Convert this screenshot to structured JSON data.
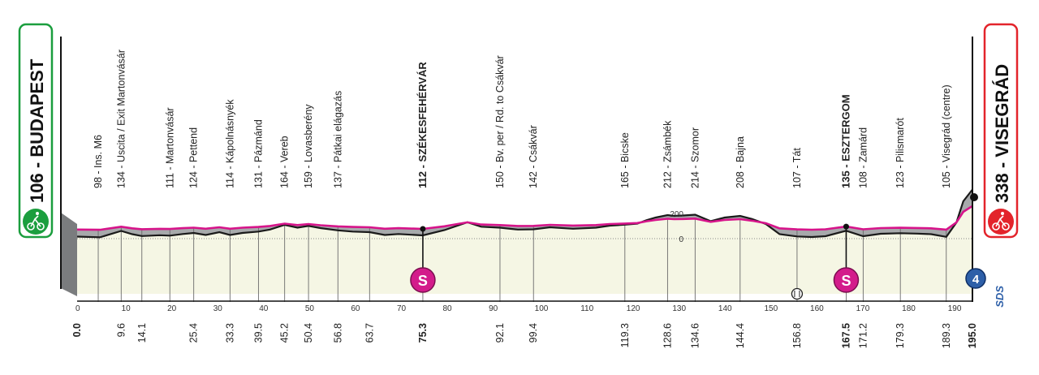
{
  "chart_data": {
    "type": "area",
    "x_unit": "km",
    "xlim": [
      0,
      195
    ],
    "x_ticks": [
      "0",
      "10",
      "20",
      "30",
      "40",
      "50",
      "60",
      "70",
      "80",
      "90",
      "100",
      "110",
      "120",
      "130",
      "140",
      "150",
      "160",
      "170",
      "180",
      "190"
    ],
    "alt_ticks": [
      "200",
      "0"
    ],
    "start": {
      "altitude": "106",
      "sep": " - ",
      "name": "BUDAPEST",
      "color": "#1b9e3e"
    },
    "finish": {
      "altitude": "338",
      "sep": " - ",
      "name": "VISEGRÁD",
      "color": "#e3242b"
    },
    "sprints": [
      {
        "label": "S",
        "km": 75.3
      },
      {
        "label": "S",
        "km": 167.5
      }
    ],
    "finish_badge": "4",
    "brand": "SDS",
    "waypoints": [
      {
        "km": 0.0,
        "km_label": "0.0",
        "name": "",
        "bold": true
      },
      {
        "km": 4.6,
        "km_label": "",
        "name": "98 - Ins. M6",
        "bold": false
      },
      {
        "km": 9.6,
        "km_label": "9.6",
        "name": "134 - Uscita / Exit Martonvásár",
        "bold": false
      },
      {
        "km": 14.1,
        "km_label": "14.1",
        "name": "",
        "bold": false
      },
      {
        "km": 20.2,
        "km_label": "",
        "name": "111 - Martonvásár",
        "bold": false
      },
      {
        "km": 25.4,
        "km_label": "25.4",
        "name": "124 - Pettend",
        "bold": false
      },
      {
        "km": 33.3,
        "km_label": "33.3",
        "name": "114 - Kápolnásnyék",
        "bold": false
      },
      {
        "km": 39.5,
        "km_label": "39.5",
        "name": "131 - Pázmánd",
        "bold": false
      },
      {
        "km": 45.2,
        "km_label": "45.2",
        "name": "164 - Vereb",
        "bold": false
      },
      {
        "km": 50.4,
        "km_label": "50.4",
        "name": "159 - Lovasberény",
        "bold": false
      },
      {
        "km": 56.8,
        "km_label": "56.8",
        "name": "137 - Pátkai elágazás",
        "bold": false
      },
      {
        "km": 63.7,
        "km_label": "63.7",
        "name": "",
        "bold": false
      },
      {
        "km": 75.3,
        "km_label": "75.3",
        "name": "112 - SZÉKESFEHÉRVÁR",
        "bold": true
      },
      {
        "km": 92.1,
        "km_label": "92.1",
        "name": "150 - Bv. per / Rd. to Csákvár",
        "bold": false
      },
      {
        "km": 99.4,
        "km_label": "99.4",
        "name": "142 - Csákvár",
        "bold": false
      },
      {
        "km": 119.3,
        "km_label": "119.3",
        "name": "165 - Bicske",
        "bold": false
      },
      {
        "km": 128.6,
        "km_label": "128.6",
        "name": "212 - Zsámbék",
        "bold": false
      },
      {
        "km": 134.6,
        "km_label": "134.6",
        "name": "214 - Szomor",
        "bold": false
      },
      {
        "km": 144.4,
        "km_label": "144.4",
        "name": "208 - Bajna",
        "bold": false
      },
      {
        "km": 156.8,
        "km_label": "156.8",
        "name": "107 - Tát",
        "bold": false
      },
      {
        "km": 167.5,
        "km_label": "167.5",
        "name": "135 - ESZTERGOM",
        "bold": true
      },
      {
        "km": 171.2,
        "km_label": "171.2",
        "name": "108 - Zamárd",
        "bold": false
      },
      {
        "km": 179.3,
        "km_label": "179.3",
        "name": "123 - Pilismarót",
        "bold": false
      },
      {
        "km": 189.3,
        "km_label": "189.3",
        "name": "105 - Visegrád (centre)",
        "bold": false
      },
      {
        "km": 195.0,
        "km_label": "195.0",
        "name": "",
        "bold": true
      }
    ],
    "profile_km": [
      0,
      5,
      9.6,
      12,
      14.1,
      18,
      20.2,
      23,
      25.4,
      28,
      31,
      33.3,
      36,
      39.5,
      42,
      45.2,
      48,
      50.4,
      53,
      56.8,
      60,
      63.7,
      67,
      70,
      75.3,
      80,
      85,
      88,
      92.1,
      96,
      99.4,
      103,
      108,
      113,
      116,
      119.3,
      122,
      124,
      126,
      128.6,
      130,
      132,
      134.6,
      138,
      141,
      144.4,
      147,
      150,
      153,
      156.8,
      160,
      163,
      167.5,
      171.2,
      175,
      179.3,
      183,
      186,
      189.3,
      191.5,
      193,
      195
    ],
    "profile_alt": [
      106,
      103,
      134,
      118,
      109,
      113,
      111,
      119,
      124,
      114,
      128,
      114,
      124,
      131,
      141,
      164,
      150,
      159,
      148,
      137,
      131,
      128,
      114,
      119,
      112,
      138,
      177,
      155,
      150,
      141,
      142,
      152,
      145,
      150,
      160,
      165,
      170,
      187,
      200,
      212,
      208,
      210,
      214,
      182,
      200,
      208,
      193,
      168,
      118,
      107,
      104,
      108,
      135,
      108,
      120,
      123,
      121,
      118,
      105,
      175,
      280,
      338
    ]
  }
}
